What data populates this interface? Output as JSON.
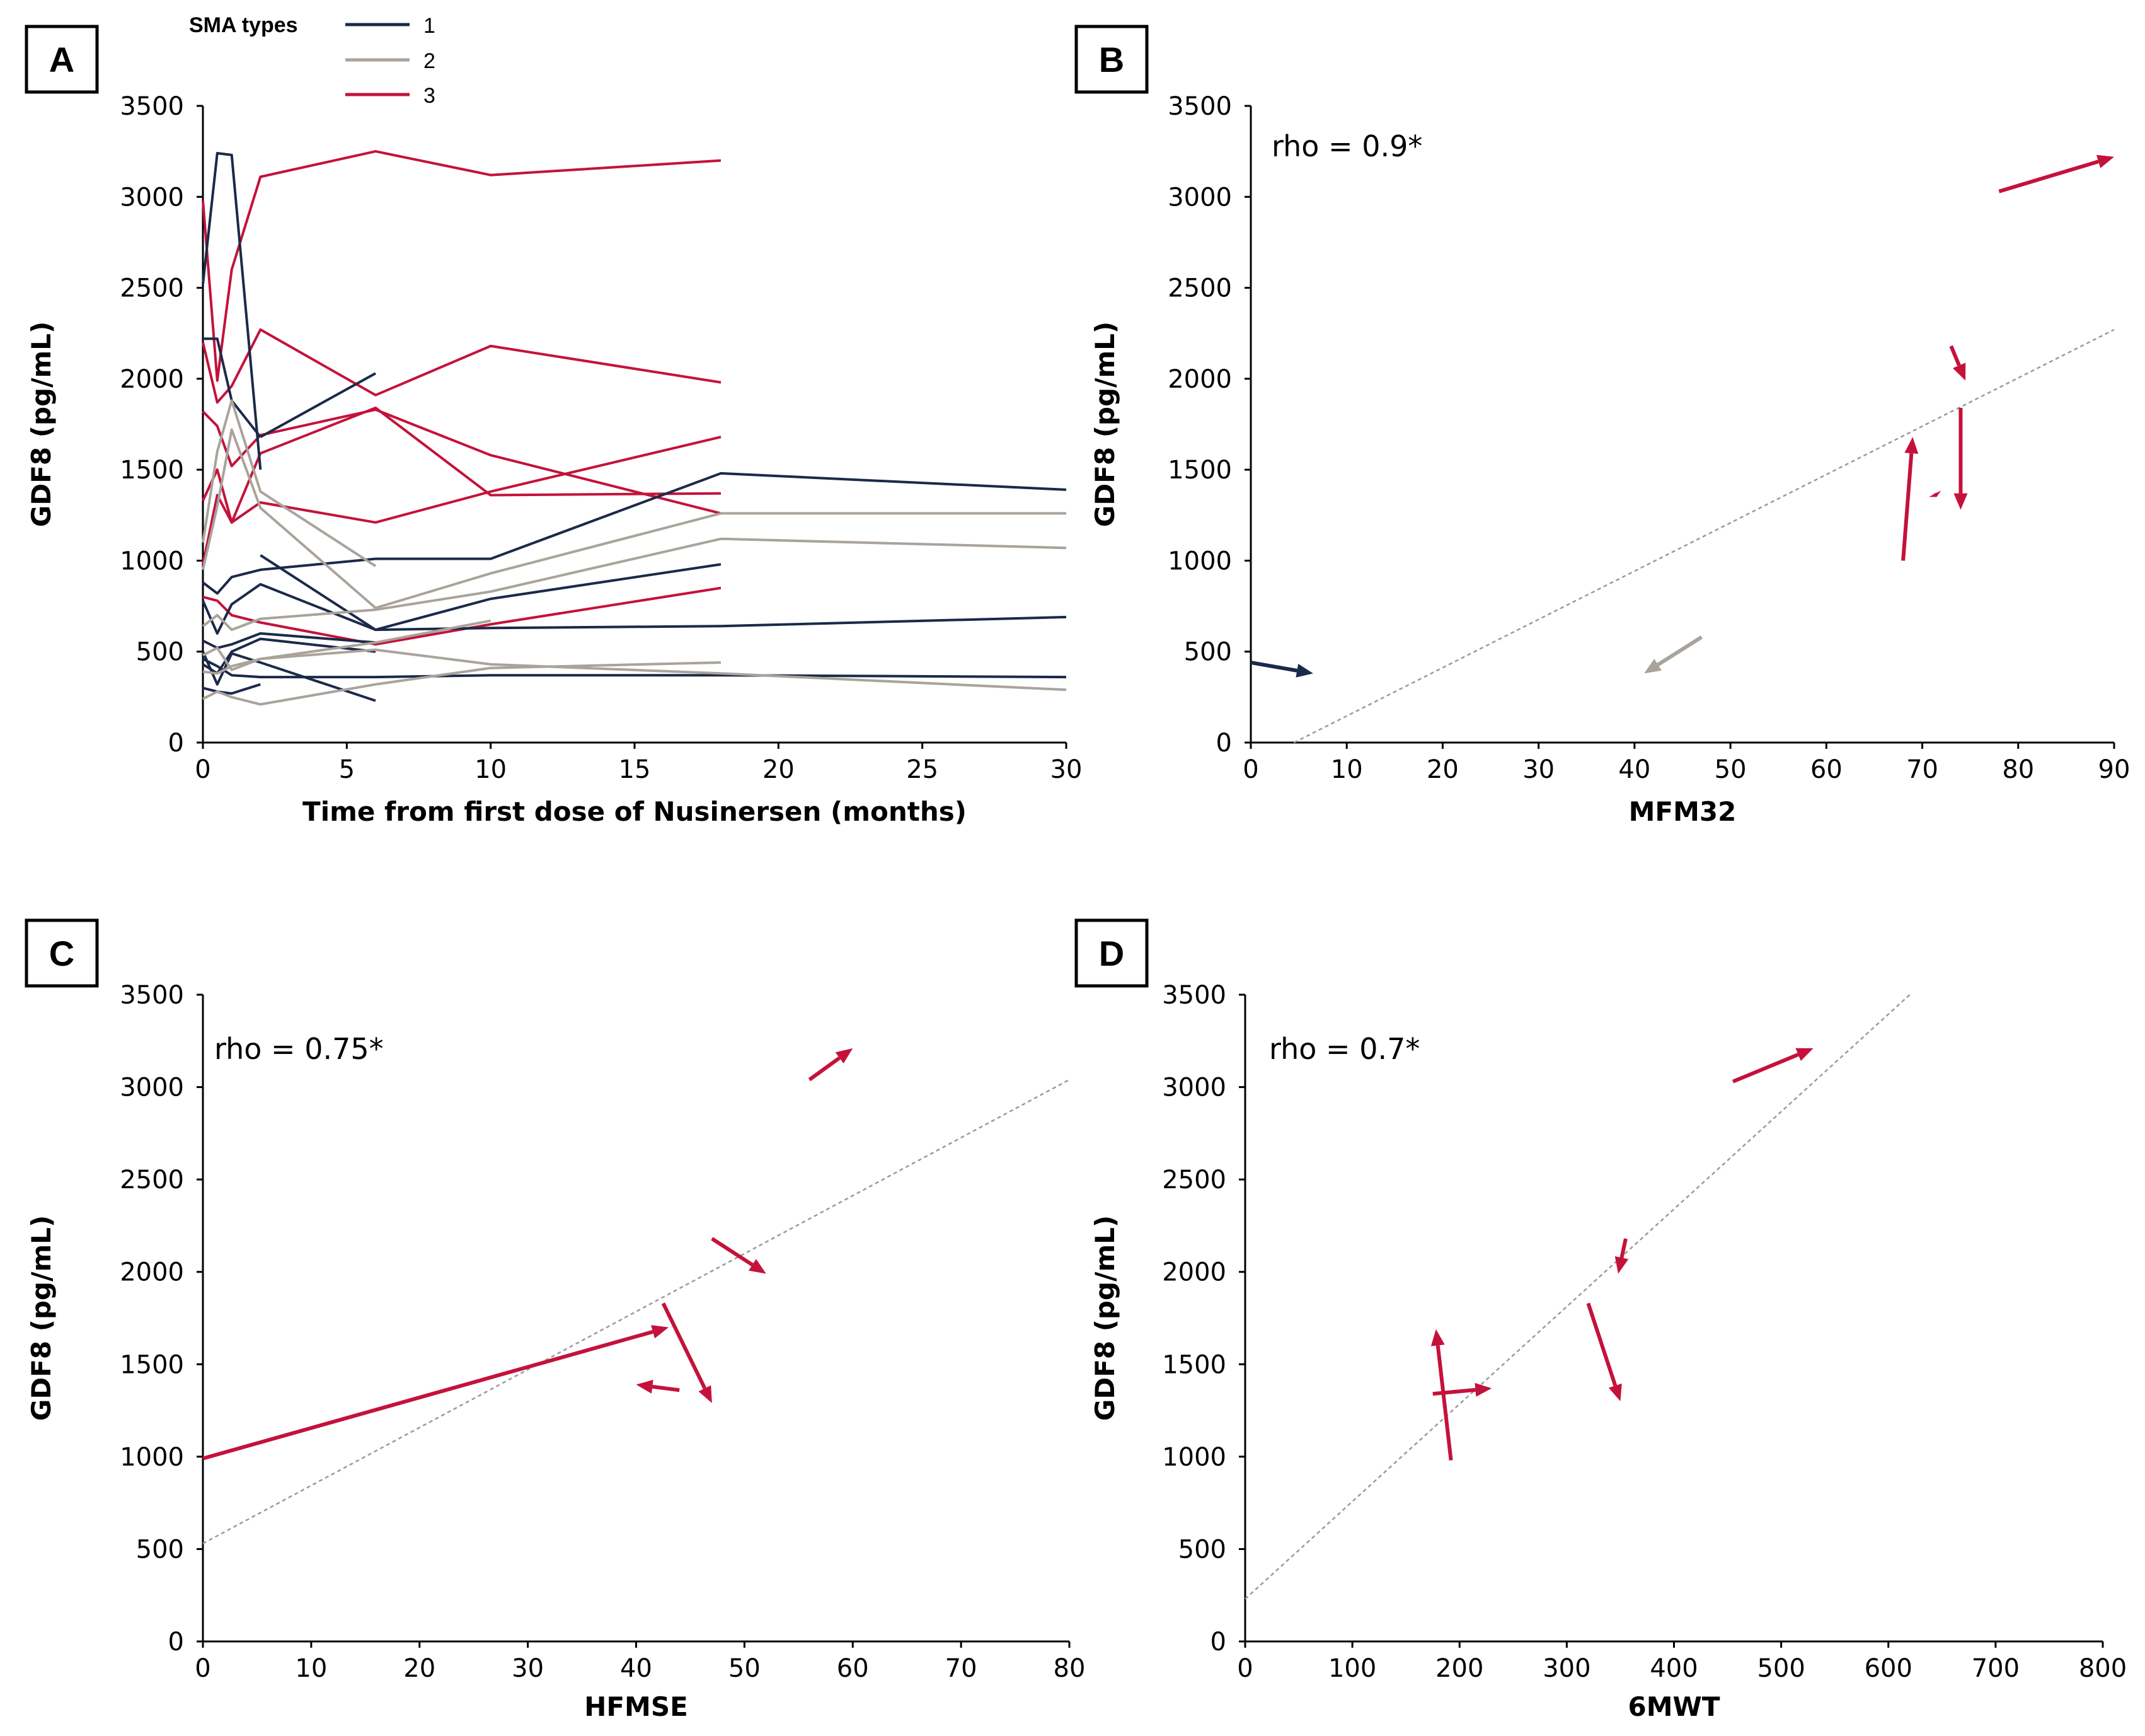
{
  "colors": {
    "type1": "#1b2a4a",
    "type2": "#aaa39b",
    "type3": "#c4123b",
    "trend": "#9a9a9a"
  },
  "legend": {
    "title": "SMA types",
    "entries": [
      {
        "label": "1",
        "color": "#1b2a4a"
      },
      {
        "label": "2",
        "color": "#aaa39b"
      },
      {
        "label": "3",
        "color": "#c4123b"
      }
    ]
  },
  "chart_data": [
    {
      "panel": "A",
      "type": "line",
      "xlabel": "Time from first dose of Nusinersen (months)",
      "ylabel": "GDF8 (pg/mL)",
      "xlim": [
        0,
        30
      ],
      "ylim": [
        0,
        3500
      ],
      "xticks": [
        0,
        5,
        10,
        15,
        20,
        25,
        30
      ],
      "yticks": [
        0,
        500,
        1000,
        1500,
        2000,
        2500,
        3000,
        3500
      ],
      "series": [
        {
          "group": "3",
          "x": [
            0,
            0.5,
            1,
            2,
            6,
            10,
            18
          ],
          "y": [
            2980,
            1990,
            2600,
            3110,
            3250,
            3120,
            3200
          ]
        },
        {
          "group": "3",
          "x": [
            0,
            0.5,
            1,
            2,
            6,
            10,
            18
          ],
          "y": [
            2200,
            1870,
            1960,
            2270,
            1910,
            2180,
            1980
          ]
        },
        {
          "group": "3",
          "x": [
            0,
            0.5,
            1,
            2,
            6,
            10,
            18
          ],
          "y": [
            1820,
            1740,
            1520,
            1690,
            1830,
            1580,
            1260
          ]
        },
        {
          "group": "3",
          "x": [
            0,
            0.5,
            1,
            2,
            6,
            10,
            18
          ],
          "y": [
            1330,
            1500,
            1210,
            1590,
            1840,
            1360,
            1370
          ]
        },
        {
          "group": "3",
          "x": [
            0,
            0.5,
            1,
            2,
            6,
            10,
            18
          ],
          "y": [
            980,
            1360,
            1210,
            1320,
            1210,
            1380,
            1680
          ]
        },
        {
          "group": "3",
          "x": [
            0,
            0.5,
            1,
            2,
            6,
            10,
            18
          ],
          "y": [
            800,
            780,
            700,
            660,
            540,
            650,
            850
          ]
        },
        {
          "group": "1",
          "x": [
            0,
            0.5,
            1,
            2
          ],
          "y": [
            2520,
            3240,
            3230,
            1500
          ]
        },
        {
          "group": "1",
          "x": [
            0,
            0.5,
            1,
            2
          ],
          "y": [
            2220,
            2220,
            1880,
            1680
          ]
        },
        {
          "group": "1",
          "x": [
            2,
            6
          ],
          "y": [
            1680,
            2030
          ]
        },
        {
          "group": "1",
          "x": [
            0,
            0.5,
            1,
            2,
            6,
            10,
            18,
            30
          ],
          "y": [
            880,
            820,
            910,
            950,
            1010,
            1010,
            1480,
            1390
          ]
        },
        {
          "group": "1",
          "x": [
            0,
            0.5,
            1,
            2,
            6,
            10,
            18
          ],
          "y": [
            780,
            600,
            760,
            870,
            620,
            790,
            980
          ]
        },
        {
          "group": "1",
          "x": [
            2,
            6,
            10,
            18,
            30
          ],
          "y": [
            1030,
            620,
            630,
            640,
            690
          ]
        },
        {
          "group": "1",
          "x": [
            0,
            0.5,
            1,
            2,
            6
          ],
          "y": [
            560,
            520,
            540,
            600,
            550
          ]
        },
        {
          "group": "1",
          "x": [
            0,
            0.5,
            1,
            2,
            6
          ],
          "y": [
            430,
            380,
            500,
            570,
            500
          ]
        },
        {
          "group": "1",
          "x": [
            0,
            0.5,
            1,
            2,
            6,
            10,
            18,
            30
          ],
          "y": [
            460,
            420,
            370,
            360,
            360,
            370,
            370,
            360
          ]
        },
        {
          "group": "1",
          "x": [
            0,
            0.5,
            1,
            2,
            6
          ],
          "y": [
            500,
            320,
            490,
            440,
            230
          ]
        },
        {
          "group": "1",
          "x": [
            0,
            0.5,
            1,
            2
          ],
          "y": [
            300,
            280,
            270,
            320
          ]
        },
        {
          "group": "2",
          "x": [
            0,
            0.5,
            1,
            2,
            6
          ],
          "y": [
            1100,
            1600,
            1880,
            1380,
            970
          ]
        },
        {
          "group": "2",
          "x": [
            0,
            0.5,
            1,
            2,
            6,
            10,
            18,
            30
          ],
          "y": [
            950,
            1300,
            1720,
            1290,
            740,
            930,
            1260,
            1260
          ]
        },
        {
          "group": "2",
          "x": [
            0,
            0.5,
            1,
            2,
            6,
            10,
            18,
            30
          ],
          "y": [
            640,
            700,
            620,
            680,
            730,
            830,
            1120,
            1070
          ]
        },
        {
          "group": "2",
          "x": [
            0,
            0.5,
            1,
            2,
            6,
            10
          ],
          "y": [
            480,
            520,
            400,
            460,
            550,
            670
          ]
        },
        {
          "group": "2",
          "x": [
            0,
            0.5,
            1,
            2,
            6,
            10,
            18,
            30
          ],
          "y": [
            390,
            380,
            420,
            460,
            510,
            430,
            380,
            290
          ]
        },
        {
          "group": "2",
          "x": [
            0,
            0.5,
            1,
            2,
            6,
            10,
            18
          ],
          "y": [
            240,
            280,
            250,
            210,
            320,
            410,
            440
          ]
        }
      ]
    },
    {
      "panel": "B",
      "type": "scatter",
      "annotation": "rho = 0.9*",
      "xlabel": "MFM32",
      "ylabel": "GDF8 (pg/mL)",
      "xlim": [
        0,
        90
      ],
      "ylim": [
        0,
        3500
      ],
      "xticks": [
        0,
        10,
        20,
        30,
        40,
        50,
        60,
        70,
        80,
        90
      ],
      "yticks": [
        0,
        500,
        1000,
        1500,
        2000,
        2500,
        3000,
        3500
      ],
      "trendline": {
        "x": [
          4.5,
          90
        ],
        "y": [
          0,
          2270
        ]
      },
      "arrows": [
        {
          "group": "1",
          "from": [
            0,
            440
          ],
          "to": [
            6.5,
            380
          ]
        },
        {
          "group": "2",
          "from": [
            47,
            580
          ],
          "to": [
            41,
            380
          ]
        },
        {
          "group": "3",
          "from": [
            78,
            3030
          ],
          "to": [
            90,
            3220
          ]
        },
        {
          "group": "3",
          "from": [
            73,
            2180
          ],
          "to": [
            74.5,
            1990
          ]
        },
        {
          "group": "3",
          "from": [
            74,
            1840
          ],
          "to": [
            74,
            1280
          ]
        },
        {
          "group": "3",
          "from": [
            68,
            1000
          ],
          "to": [
            69,
            1680
          ]
        },
        {
          "group": "3",
          "from": [
            71.3,
            1370
          ],
          "to": [
            71.5,
            1350
          ]
        }
      ]
    },
    {
      "panel": "C",
      "type": "scatter",
      "annotation": "rho = 0.75*",
      "xlabel": "HFMSE",
      "ylabel": "GDF8 (pg/mL)",
      "xlim": [
        0,
        80
      ],
      "ylim": [
        0,
        3500
      ],
      "xticks": [
        0,
        10,
        20,
        30,
        40,
        50,
        60,
        70,
        80
      ],
      "yticks": [
        0,
        500,
        1000,
        1500,
        2000,
        2500,
        3000,
        3500
      ],
      "trendline": {
        "x": [
          0,
          80
        ],
        "y": [
          530,
          3040
        ]
      },
      "arrows": [
        {
          "group": "3",
          "from": [
            56,
            3040
          ],
          "to": [
            60,
            3210
          ]
        },
        {
          "group": "3",
          "from": [
            47,
            2180
          ],
          "to": [
            52,
            1990
          ]
        },
        {
          "group": "3",
          "from": [
            0,
            990
          ],
          "to": [
            43,
            1700
          ]
        },
        {
          "group": "3",
          "from": [
            42.5,
            1830
          ],
          "to": [
            47,
            1290
          ]
        },
        {
          "group": "3",
          "from": [
            44,
            1360
          ],
          "to": [
            40,
            1390
          ]
        }
      ]
    },
    {
      "panel": "D",
      "type": "scatter",
      "annotation": "rho = 0.7*",
      "xlabel": "6MWT",
      "ylabel": "GDF8 (pg/mL)",
      "xlim": [
        0,
        800
      ],
      "ylim": [
        0,
        3500
      ],
      "xticks": [
        0,
        100,
        200,
        300,
        400,
        500,
        600,
        700,
        800
      ],
      "yticks": [
        0,
        500,
        1000,
        1500,
        2000,
        2500,
        3000,
        3500
      ],
      "trendline": {
        "x": [
          0,
          620
        ],
        "y": [
          230,
          3500
        ]
      },
      "arrows": [
        {
          "group": "3",
          "from": [
            455,
            3030
          ],
          "to": [
            530,
            3210
          ]
        },
        {
          "group": "3",
          "from": [
            355,
            2180
          ],
          "to": [
            348,
            1990
          ]
        },
        {
          "group": "3",
          "from": [
            320,
            1830
          ],
          "to": [
            350,
            1300
          ]
        },
        {
          "group": "3",
          "from": [
            192,
            980
          ],
          "to": [
            178,
            1690
          ]
        },
        {
          "group": "3",
          "from": [
            175,
            1340
          ],
          "to": [
            230,
            1370
          ]
        }
      ]
    }
  ]
}
